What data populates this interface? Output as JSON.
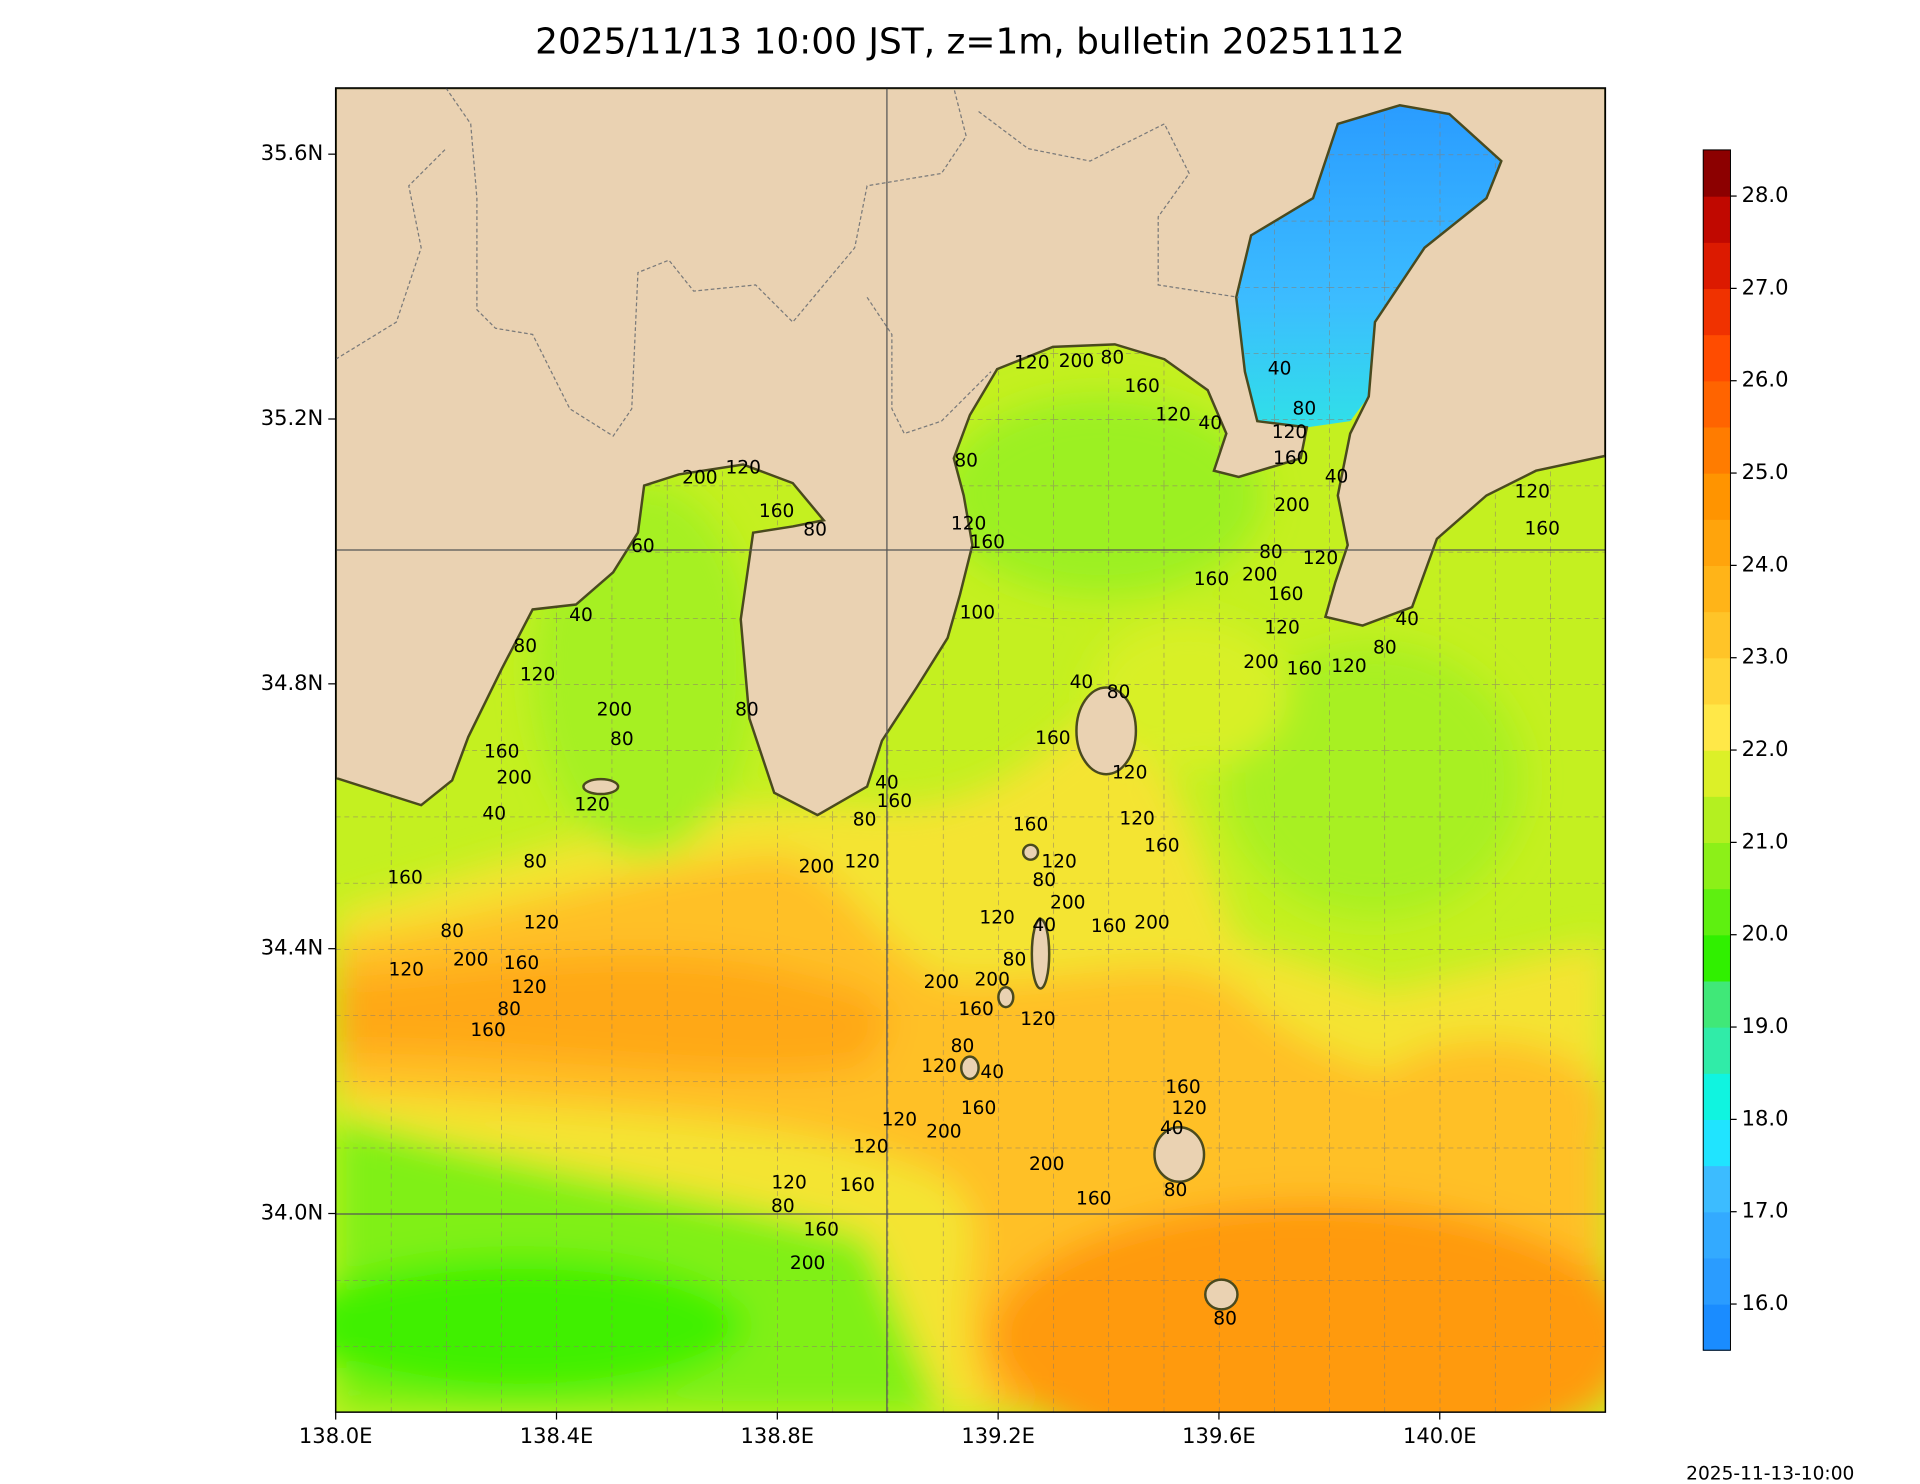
{
  "title": "2025/11/13 10:00 JST, z=1m, bulletin 20251112",
  "map": {
    "xlim": [
      138.0,
      140.3
    ],
    "ylim": [
      33.7,
      35.7
    ],
    "xticks": [
      {
        "value": 138.0,
        "label": "138.0E"
      },
      {
        "value": 138.4,
        "label": "138.4E"
      },
      {
        "value": 138.8,
        "label": "138.8E"
      },
      {
        "value": 139.2,
        "label": "139.2E"
      },
      {
        "value": 139.6,
        "label": "139.6E"
      },
      {
        "value": 140.0,
        "label": "140.0E"
      }
    ],
    "yticks": [
      {
        "value": 34.0,
        "label": "34.0N"
      },
      {
        "value": 34.4,
        "label": "34.4N"
      },
      {
        "value": 34.8,
        "label": "34.8N"
      },
      {
        "value": 35.2,
        "label": "35.2N"
      },
      {
        "value": 35.6,
        "label": "35.6N"
      }
    ],
    "contour_labels": [
      120,
      200,
      80,
      160,
      120,
      40,
      40,
      80,
      120,
      160,
      40,
      200,
      80,
      120,
      200,
      160,
      160,
      120,
      200,
      160,
      120,
      80,
      40,
      120,
      160,
      200,
      120,
      160,
      80,
      60,
      40,
      80,
      120,
      200,
      80,
      160,
      200,
      40,
      120,
      80,
      160,
      80,
      120,
      120,
      200,
      160,
      120,
      80,
      160,
      80,
      40,
      160,
      80,
      200,
      120,
      80,
      120,
      160,
      100,
      40,
      80,
      160,
      120,
      160,
      120,
      160,
      120,
      80,
      200,
      120,
      40,
      160,
      200,
      80,
      200,
      200,
      160,
      120,
      80,
      40,
      120,
      160,
      200,
      120,
      120,
      160,
      120,
      80,
      160,
      200,
      200,
      160,
      80,
      160,
      120,
      40,
      80
    ]
  },
  "colorbar": {
    "lim": [
      15.5,
      28.5
    ],
    "ticks": [
      {
        "value": 16,
        "label": "16.0"
      },
      {
        "value": 17,
        "label": "17.0"
      },
      {
        "value": 18,
        "label": "18.0"
      },
      {
        "value": 19,
        "label": "19.0"
      },
      {
        "value": 20,
        "label": "20.0"
      },
      {
        "value": 21,
        "label": "21.0"
      },
      {
        "value": 22,
        "label": "22.0"
      },
      {
        "value": 23,
        "label": "23.0"
      },
      {
        "value": 24,
        "label": "24.0"
      },
      {
        "value": 25,
        "label": "25.0"
      },
      {
        "value": 26,
        "label": "26.0"
      },
      {
        "value": 27,
        "label": "27.0"
      },
      {
        "value": 28,
        "label": "28.0"
      }
    ],
    "colors": [
      "#1a8cff",
      "#2a9cff",
      "#33aaff",
      "#3cbcff",
      "#20e4ff",
      "#10f4e0",
      "#30eca8",
      "#40e878",
      "#30f000",
      "#5ef010",
      "#8cf018",
      "#b4f020",
      "#dcf028",
      "#ffe848",
      "#ffd638",
      "#ffc428",
      "#ffb418",
      "#ffa40c",
      "#ff9400",
      "#ff7c00",
      "#ff6400",
      "#ff4c00",
      "#f03200",
      "#dc1a00",
      "#c00800",
      "#8c0000"
    ]
  },
  "footer": "2025-11-13-10:00"
}
